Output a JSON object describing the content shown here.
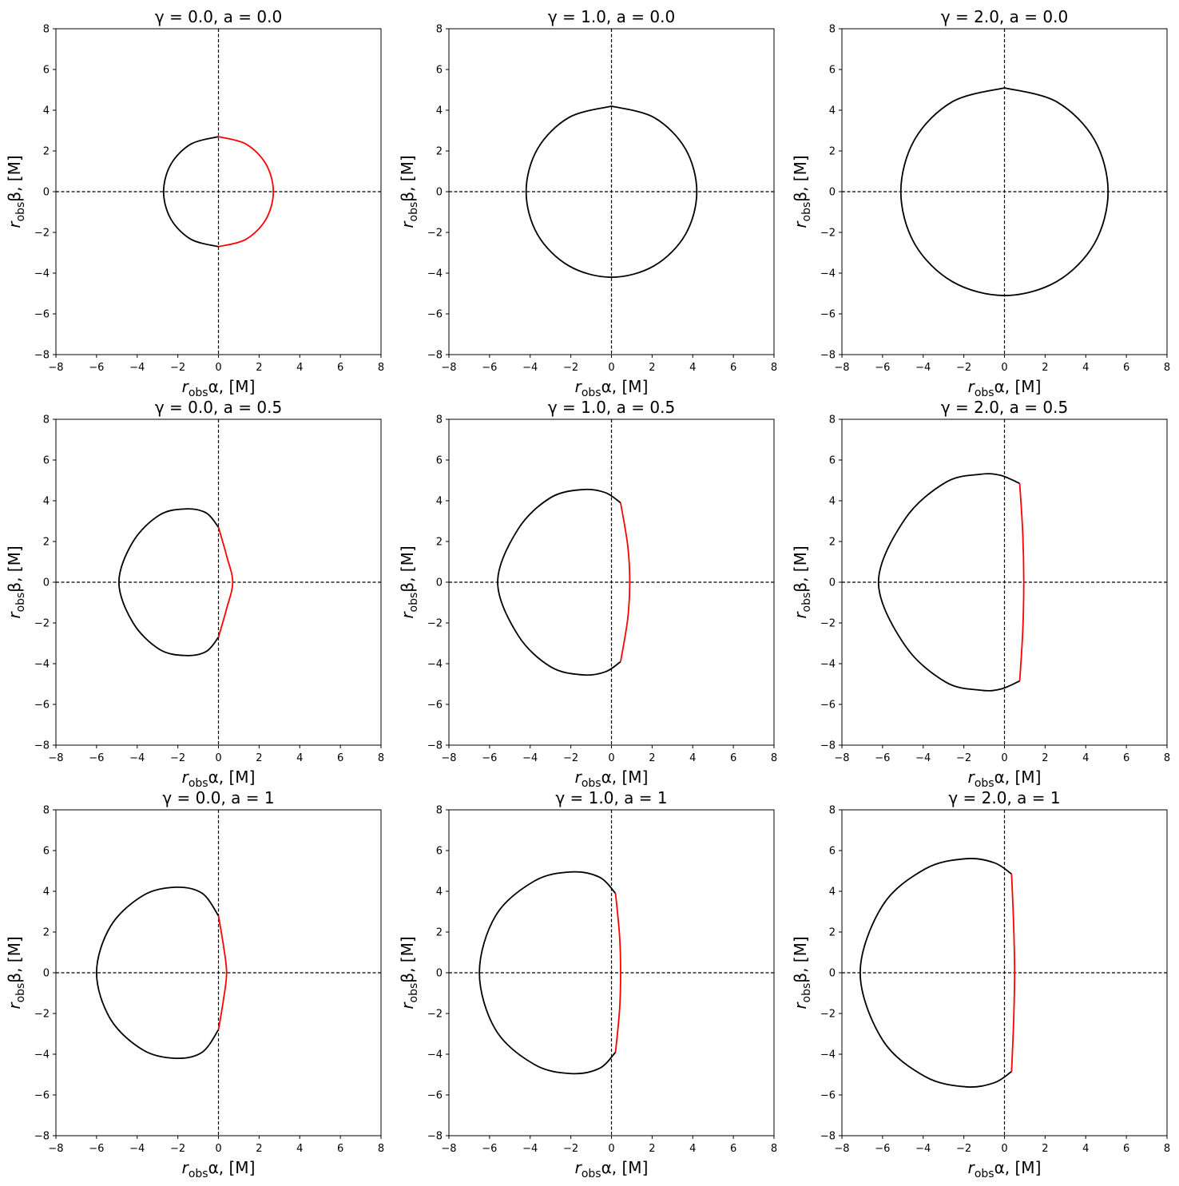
{
  "chart_data": [
    {
      "type": "line",
      "panel": [
        0,
        0
      ],
      "title": "γ = 0.0,  a = 0.0",
      "xlabel": "r_obs α,  [M]",
      "ylabel": "r_obs β,  [M]",
      "xlim": [
        -8,
        8
      ],
      "ylim": [
        -8,
        8
      ],
      "xticks": [
        -8,
        -6,
        -4,
        -2,
        0,
        2,
        4,
        6,
        8
      ],
      "yticks": [
        -8,
        -6,
        -4,
        -2,
        0,
        2,
        4,
        6,
        8
      ],
      "grid": false,
      "reference_lines": {
        "x": 0,
        "y": 0,
        "style": "dashed"
      },
      "series": [
        {
          "color": "#000000",
          "x": [
            0.0,
            -1.35,
            -2.34,
            -2.7,
            -2.34,
            -1.35,
            0.0
          ],
          "y": [
            2.7,
            2.34,
            1.35,
            0.0,
            -1.35,
            -2.34,
            -2.7
          ]
        },
        {
          "color": "#ff0000",
          "x": [
            0.0,
            1.35,
            2.34,
            2.7,
            2.34,
            1.35,
            0.0
          ],
          "y": [
            2.7,
            2.34,
            1.35,
            0.0,
            -1.35,
            -2.34,
            -2.7
          ]
        }
      ]
    },
    {
      "type": "line",
      "panel": [
        0,
        1
      ],
      "title": "γ = 1.0,  a = 0.0",
      "xlabel": "r_obs α,  [M]",
      "ylabel": "r_obs β,  [M]",
      "xlim": [
        -8,
        8
      ],
      "ylim": [
        -8,
        8
      ],
      "xticks": [
        -8,
        -6,
        -4,
        -2,
        0,
        2,
        4,
        6,
        8
      ],
      "yticks": [
        -8,
        -6,
        -4,
        -2,
        0,
        2,
        4,
        6,
        8
      ],
      "grid": false,
      "reference_lines": {
        "x": 0,
        "y": 0,
        "style": "dashed"
      },
      "series": [
        {
          "color": "#000000",
          "x": [
            0.0,
            2.1,
            3.64,
            4.2,
            3.64,
            2.1,
            0.0,
            -2.1,
            -3.64,
            -4.2,
            -3.64,
            -2.1,
            0.0
          ],
          "y": [
            4.2,
            3.64,
            2.1,
            0.0,
            -2.1,
            -3.64,
            -4.2,
            -3.64,
            -2.1,
            0.0,
            2.1,
            3.64,
            4.2
          ]
        }
      ]
    },
    {
      "type": "line",
      "panel": [
        0,
        2
      ],
      "title": "γ = 2.0,  a = 0.0",
      "xlabel": "r_obs α,  [M]",
      "ylabel": "r_obs β,  [M]",
      "xlim": [
        -8,
        8
      ],
      "ylim": [
        -8,
        8
      ],
      "xticks": [
        -8,
        -6,
        -4,
        -2,
        0,
        2,
        4,
        6,
        8
      ],
      "yticks": [
        -8,
        -6,
        -4,
        -2,
        0,
        2,
        4,
        6,
        8
      ],
      "grid": false,
      "reference_lines": {
        "x": 0,
        "y": 0,
        "style": "dashed"
      },
      "series": [
        {
          "color": "#000000",
          "x": [
            0.0,
            2.56,
            4.42,
            5.1,
            4.42,
            2.56,
            0.0,
            -2.56,
            -4.42,
            -5.1,
            -4.42,
            -2.56,
            0.0
          ],
          "y": [
            5.1,
            4.42,
            2.56,
            0.0,
            -2.56,
            -4.42,
            -5.1,
            -4.42,
            -2.56,
            0.0,
            2.56,
            4.42,
            5.1
          ]
        }
      ]
    },
    {
      "type": "line",
      "panel": [
        1,
        0
      ],
      "title": "γ = 0.0,  a = 0.5",
      "xlabel": "r_obs α,  [M]",
      "ylabel": "r_obs β,  [M]",
      "xlim": [
        -8,
        8
      ],
      "ylim": [
        -8,
        8
      ],
      "xticks": [
        -8,
        -6,
        -4,
        -2,
        0,
        2,
        4,
        6,
        8
      ],
      "yticks": [
        -8,
        -6,
        -4,
        -2,
        0,
        2,
        4,
        6,
        8
      ],
      "grid": false,
      "reference_lines": {
        "x": 0,
        "y": 0,
        "style": "dashed"
      },
      "series": [
        {
          "color": "#000000",
          "x": [
            0.0,
            -0.6,
            -1.6,
            -2.9,
            -4.2,
            -4.9,
            -4.2,
            -2.9,
            -1.6,
            -0.6,
            0.0
          ],
          "y": [
            2.7,
            3.4,
            3.6,
            3.3,
            2.0,
            0.0,
            -2.0,
            -3.3,
            -3.6,
            -3.4,
            -2.7
          ]
        },
        {
          "color": "#ff0000",
          "x": [
            0.0,
            0.4,
            0.7,
            0.4,
            0.0
          ],
          "y": [
            2.7,
            1.3,
            0.0,
            -1.3,
            -2.7
          ]
        }
      ]
    },
    {
      "type": "line",
      "panel": [
        1,
        1
      ],
      "title": "γ = 1.0,  a = 0.5",
      "xlabel": "r_obs α,  [M]",
      "ylabel": "r_obs β,  [M]",
      "xlim": [
        -8,
        8
      ],
      "ylim": [
        -8,
        8
      ],
      "xticks": [
        -8,
        -6,
        -4,
        -2,
        0,
        2,
        4,
        6,
        8
      ],
      "yticks": [
        -8,
        -6,
        -4,
        -2,
        0,
        2,
        4,
        6,
        8
      ],
      "grid": false,
      "reference_lines": {
        "x": 0,
        "y": 0,
        "style": "dashed"
      },
      "series": [
        {
          "color": "#000000",
          "x": [
            0.45,
            -0.3,
            -1.4,
            -3.0,
            -4.6,
            -5.6,
            -4.6,
            -3.0,
            -1.4,
            -0.3,
            0.45
          ],
          "y": [
            3.9,
            4.4,
            4.55,
            4.15,
            2.6,
            0.0,
            -2.6,
            -4.15,
            -4.55,
            -4.4,
            -3.9
          ]
        },
        {
          "color": "#ff0000",
          "x": [
            0.45,
            0.8,
            0.9,
            0.8,
            0.45
          ],
          "y": [
            3.9,
            1.8,
            0.0,
            -1.8,
            -3.9
          ]
        }
      ]
    },
    {
      "type": "line",
      "panel": [
        1,
        2
      ],
      "title": "γ = 2.0,  a = 0.5",
      "xlabel": "r_obs α,  [M]",
      "ylabel": "r_obs β,  [M]",
      "xlim": [
        -8,
        8
      ],
      "ylim": [
        -8,
        8
      ],
      "xticks": [
        -8,
        -6,
        -4,
        -2,
        0,
        2,
        4,
        6,
        8
      ],
      "yticks": [
        -8,
        -6,
        -4,
        -2,
        0,
        2,
        4,
        6,
        8
      ],
      "grid": false,
      "reference_lines": {
        "x": 0,
        "y": 0,
        "style": "dashed"
      },
      "series": [
        {
          "color": "#000000",
          "x": [
            0.75,
            -0.2,
            -1.2,
            -2.9,
            -4.9,
            -6.2,
            -4.9,
            -2.9,
            -1.2,
            -0.2,
            0.75
          ],
          "y": [
            4.85,
            5.25,
            5.3,
            4.9,
            3.1,
            0.0,
            -3.1,
            -4.9,
            -5.3,
            -5.25,
            -4.85
          ]
        },
        {
          "color": "#ff0000",
          "x": [
            0.75,
            0.9,
            0.95,
            0.9,
            0.75
          ],
          "y": [
            4.85,
            2.4,
            0.0,
            -2.4,
            -4.85
          ]
        }
      ]
    },
    {
      "type": "line",
      "panel": [
        2,
        0
      ],
      "title": "γ = 0.0,  a = 1",
      "xlabel": "r_obs α,  [M]",
      "ylabel": "r_obs β,  [M]",
      "xlim": [
        -8,
        8
      ],
      "ylim": [
        -8,
        8
      ],
      "xticks": [
        -8,
        -6,
        -4,
        -2,
        0,
        2,
        4,
        6,
        8
      ],
      "yticks": [
        -8,
        -6,
        -4,
        -2,
        0,
        2,
        4,
        6,
        8
      ],
      "grid": false,
      "reference_lines": {
        "x": 0,
        "y": 0,
        "style": "dashed"
      },
      "series": [
        {
          "color": "#000000",
          "x": [
            0.0,
            -0.8,
            -2.1,
            -3.7,
            -5.3,
            -6.0,
            -5.3,
            -3.7,
            -2.1,
            -0.8,
            0.0
          ],
          "y": [
            2.8,
            3.9,
            4.2,
            3.8,
            2.3,
            0.0,
            -2.3,
            -3.8,
            -4.2,
            -3.9,
            -2.8
          ]
        },
        {
          "color": "#ff0000",
          "x": [
            0.0,
            0.25,
            0.4,
            0.25,
            0.0
          ],
          "y": [
            2.8,
            1.3,
            0.0,
            -1.3,
            -2.8
          ]
        }
      ]
    },
    {
      "type": "line",
      "panel": [
        2,
        1
      ],
      "title": "γ = 1.0,  a = 1",
      "xlabel": "r_obs α,  [M]",
      "ylabel": "r_obs β,  [M]",
      "xlim": [
        -8,
        8
      ],
      "ylim": [
        -8,
        8
      ],
      "xticks": [
        -8,
        -6,
        -4,
        -2,
        0,
        2,
        4,
        6,
        8
      ],
      "yticks": [
        -8,
        -6,
        -4,
        -2,
        0,
        2,
        4,
        6,
        8
      ],
      "grid": false,
      "reference_lines": {
        "x": 0,
        "y": 0,
        "style": "dashed"
      },
      "series": [
        {
          "color": "#000000",
          "x": [
            0.2,
            -0.6,
            -2.0,
            -3.8,
            -5.7,
            -6.5,
            -5.7,
            -3.8,
            -2.0,
            -0.6,
            0.2
          ],
          "y": [
            3.9,
            4.7,
            4.95,
            4.5,
            2.8,
            0.0,
            -2.8,
            -4.5,
            -4.95,
            -4.7,
            -3.9
          ]
        },
        {
          "color": "#ff0000",
          "x": [
            0.2,
            0.4,
            0.45,
            0.4,
            0.2
          ],
          "y": [
            3.9,
            1.8,
            0.0,
            -1.8,
            -3.9
          ]
        }
      ]
    },
    {
      "type": "line",
      "panel": [
        2,
        2
      ],
      "title": "γ = 2.0,  a = 1",
      "xlabel": "r_obs α,  [M]",
      "ylabel": "r_obs β,  [M]",
      "xlim": [
        -8,
        8
      ],
      "ylim": [
        -8,
        8
      ],
      "xticks": [
        -8,
        -6,
        -4,
        -2,
        0,
        2,
        4,
        6,
        8
      ],
      "yticks": [
        -8,
        -6,
        -4,
        -2,
        0,
        2,
        4,
        6,
        8
      ],
      "grid": false,
      "reference_lines": {
        "x": 0,
        "y": 0,
        "style": "dashed"
      },
      "series": [
        {
          "color": "#000000",
          "x": [
            0.35,
            -0.5,
            -1.9,
            -3.9,
            -6.0,
            -7.1,
            -6.0,
            -3.9,
            -1.9,
            -0.5,
            0.35
          ],
          "y": [
            4.85,
            5.4,
            5.6,
            5.1,
            3.3,
            0.0,
            -3.3,
            -5.1,
            -5.6,
            -5.4,
            -4.85
          ]
        },
        {
          "color": "#ff0000",
          "x": [
            0.35,
            0.45,
            0.5,
            0.45,
            0.35
          ],
          "y": [
            4.85,
            2.4,
            0.0,
            -2.4,
            -4.85
          ]
        }
      ]
    }
  ]
}
